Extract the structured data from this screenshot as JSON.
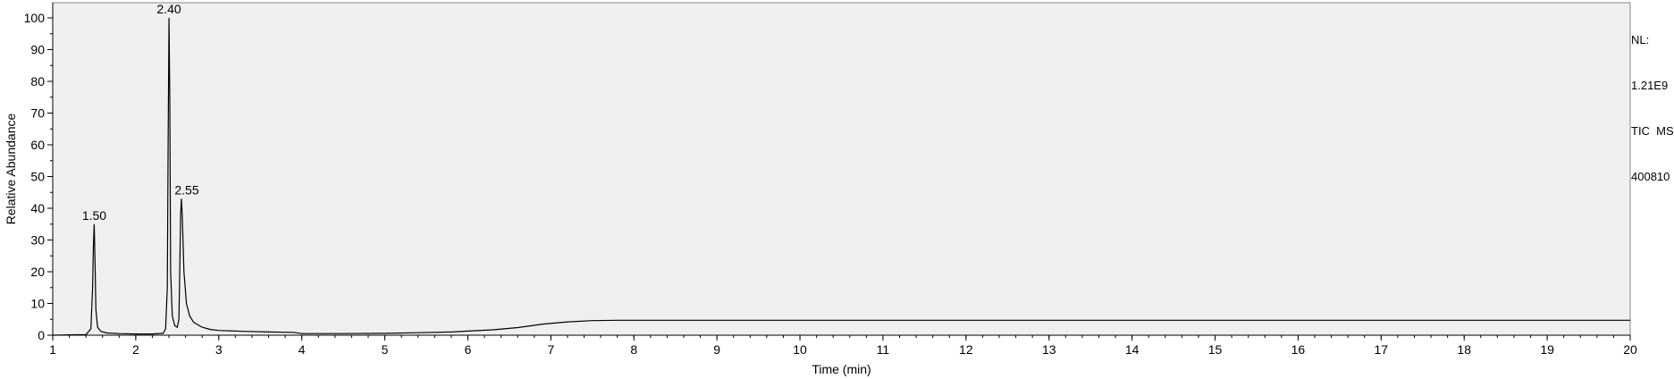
{
  "info": {
    "nl_label": "NL:",
    "nl_value": "1.21E9",
    "trace": "TIC  MS",
    "file": "400810"
  },
  "chart_data": {
    "type": "line",
    "title": "",
    "xlabel": "Time (min)",
    "ylabel": "Relative Abundance",
    "xlim": [
      1,
      20
    ],
    "ylim": [
      0,
      100
    ],
    "x_ticks": [
      1,
      2,
      3,
      4,
      5,
      6,
      7,
      8,
      9,
      10,
      11,
      12,
      13,
      14,
      15,
      16,
      17,
      18,
      19,
      20
    ],
    "y_ticks": [
      0,
      10,
      20,
      30,
      40,
      50,
      60,
      70,
      80,
      90,
      100
    ],
    "grid": false,
    "background": "#efefef",
    "line_color": "#000000",
    "peak_labels": [
      {
        "text": "1.50",
        "x": 1.5,
        "y": 35
      },
      {
        "text": "2.40",
        "x": 2.4,
        "y": 100
      },
      {
        "text": "2.55",
        "x": 2.55,
        "y": 43
      }
    ],
    "series": [
      {
        "x": [
          1.0,
          1.2,
          1.4,
          1.46,
          1.48,
          1.49,
          1.5,
          1.51,
          1.52,
          1.54,
          1.58,
          1.65,
          1.8,
          2.0,
          2.2,
          2.33,
          2.36,
          2.38,
          2.39,
          2.4,
          2.41,
          2.42,
          2.44,
          2.47,
          2.5,
          2.52,
          2.53,
          2.54,
          2.55,
          2.56,
          2.58,
          2.61,
          2.65,
          2.7,
          2.8,
          2.9,
          3.0,
          3.3,
          3.6,
          3.9,
          4.0,
          4.5,
          5.0,
          5.4,
          5.8,
          6.0,
          6.3,
          6.6,
          6.9,
          7.2,
          7.5,
          7.8,
          8.0,
          9.0,
          10.0,
          11.0,
          12.0,
          13.0,
          14.0,
          15.0,
          16.0,
          17.0,
          18.0,
          19.0,
          20.0
        ],
        "y": [
          0.0,
          0.1,
          0.2,
          2,
          15,
          28,
          35,
          22,
          8,
          2.5,
          1.2,
          0.7,
          0.5,
          0.4,
          0.4,
          0.6,
          2,
          15,
          60,
          100,
          74,
          20,
          6,
          3,
          2.5,
          5,
          20,
          38,
          43,
          38,
          20,
          10,
          6,
          4,
          2.5,
          1.8,
          1.5,
          1.2,
          1.0,
          0.9,
          0.5,
          0.5,
          0.6,
          0.8,
          1.0,
          1.3,
          1.7,
          2.4,
          3.5,
          4.2,
          4.6,
          4.7,
          4.7,
          4.7,
          4.7,
          4.7,
          4.7,
          4.7,
          4.7,
          4.7,
          4.7,
          4.7,
          4.7,
          4.7,
          4.7
        ]
      }
    ]
  }
}
